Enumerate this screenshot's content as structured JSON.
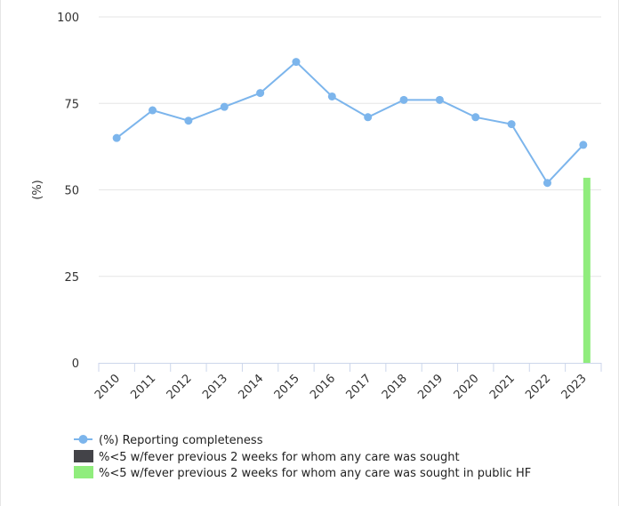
{
  "chart_data": {
    "type": "line",
    "ylabel": "(%)",
    "xlabel": "",
    "ylim": [
      0,
      100
    ],
    "yticks": [
      0,
      25,
      50,
      75,
      100
    ],
    "categories": [
      "2010",
      "2011",
      "2012",
      "2013",
      "2014",
      "2015",
      "2016",
      "2017",
      "2018",
      "2019",
      "2020",
      "2021",
      "2022",
      "2023"
    ],
    "series": [
      {
        "name": "(%) Reporting completeness",
        "kind": "line",
        "color": "#7cb5ec",
        "values": [
          65,
          73,
          70,
          74,
          78,
          87,
          77,
          71,
          76,
          76,
          71,
          69,
          52,
          63
        ]
      },
      {
        "name": "%<5 w/fever previous 2 weeks for whom any care was sought",
        "kind": "bar",
        "color": "#434348",
        "values": [
          null,
          null,
          null,
          null,
          null,
          null,
          null,
          null,
          null,
          null,
          null,
          null,
          null,
          null
        ]
      },
      {
        "name": "%<5 w/fever previous 2 weeks for whom any care was sought in public HF",
        "kind": "bar",
        "color": "#90ed7d",
        "values": [
          null,
          null,
          null,
          null,
          null,
          null,
          null,
          null,
          null,
          null,
          null,
          null,
          null,
          53.5
        ]
      }
    ],
    "grid": true,
    "legend_position": "bottom-left"
  }
}
